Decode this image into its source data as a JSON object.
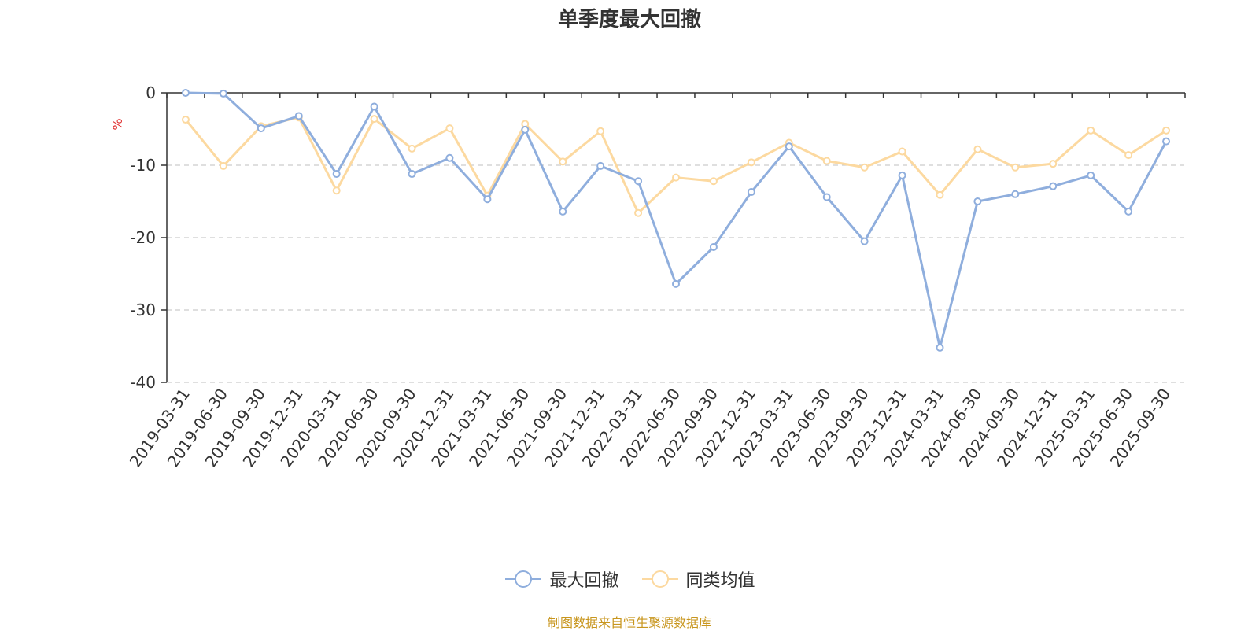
{
  "chart_data": {
    "type": "line",
    "title": "单季度最大回撤",
    "ylabel": "%",
    "xlabel": "",
    "ylim": [
      -40,
      0
    ],
    "yticks": [
      0,
      -10,
      -20,
      -30,
      -40
    ],
    "categories": [
      "2019-03-31",
      "2019-06-30",
      "2019-09-30",
      "2019-12-31",
      "2020-03-31",
      "2020-06-30",
      "2020-09-30",
      "2020-12-31",
      "2021-03-31",
      "2021-06-30",
      "2021-09-30",
      "2021-12-31",
      "2022-03-31",
      "2022-06-30",
      "2022-09-30",
      "2022-12-31",
      "2023-03-31",
      "2023-06-30",
      "2023-09-30",
      "2023-12-31",
      "2024-03-31",
      "2024-06-30",
      "2024-09-30",
      "2024-12-31",
      "2025-03-31",
      "2025-06-30",
      "2025-09-30"
    ],
    "series": [
      {
        "name": "最大回撤",
        "color": "#8faedd",
        "values": [
          0,
          -0.1,
          -4.9,
          -3.2,
          -11.2,
          -1.9,
          -11.2,
          -9.0,
          -14.7,
          -5.1,
          -16.4,
          -10.1,
          -12.2,
          -26.4,
          -21.3,
          -13.7,
          -7.4,
          -14.4,
          -20.5,
          -11.4,
          -35.2,
          -15.0,
          -14.0,
          -12.9,
          -11.4,
          -16.4,
          -6.7
        ]
      },
      {
        "name": "同类均值",
        "color": "#fcd9a0",
        "values": [
          -3.7,
          -10.1,
          -4.6,
          -3.4,
          -13.5,
          -3.6,
          -7.7,
          -4.9,
          -14.2,
          -4.3,
          -9.5,
          -5.3,
          -16.6,
          -11.7,
          -12.2,
          -9.6,
          -6.9,
          -9.4,
          -10.3,
          -8.1,
          -14.1,
          -7.8,
          -10.3,
          -9.8,
          -5.2,
          -8.6,
          -5.2
        ]
      }
    ]
  },
  "legend": {
    "items": [
      "最大回撤",
      "同类均值"
    ]
  },
  "source": {
    "text": "制图数据来自恒生聚源数据库",
    "color": "#c8961e"
  },
  "colors": {
    "axis": "#333333",
    "grid": "#cccccc",
    "ylabel": "#e03030"
  }
}
